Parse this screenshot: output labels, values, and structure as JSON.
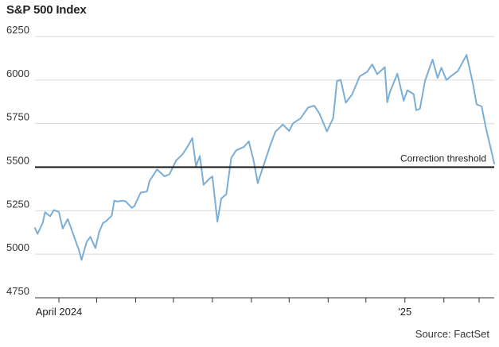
{
  "chart_data": {
    "type": "line",
    "title": "S&P 500 Index",
    "xlabel": "",
    "ylabel": "",
    "ylim": [
      4750,
      6250
    ],
    "xlim": [
      "2024-03-13",
      "2025-03-13"
    ],
    "yticks": [
      4750,
      5000,
      5250,
      5500,
      5750,
      6000,
      6250
    ],
    "ytick_labels": [
      "4750",
      "5000",
      "5250",
      "5500",
      "5750",
      "6000",
      "6250"
    ],
    "xtick_labels": [
      {
        "date": "2024-04-01",
        "label": "April 2024"
      },
      {
        "date": "2025-01-01",
        "label": "'25"
      }
    ],
    "month_ticks": [
      "2024-04-01",
      "2024-05-01",
      "2024-06-01",
      "2024-07-01",
      "2024-08-01",
      "2024-09-01",
      "2024-10-01",
      "2024-11-01",
      "2024-12-01",
      "2025-01-01",
      "2025-02-01",
      "2025-03-01"
    ],
    "grid": true,
    "line_color": "#7aaed6",
    "series": [
      {
        "name": "",
        "x": [
          "2024-03-13",
          "2024-03-15",
          "2024-03-19",
          "2024-03-21",
          "2024-03-25",
          "2024-03-28",
          "2024-04-01",
          "2024-04-04",
          "2024-04-08",
          "2024-04-12",
          "2024-04-15",
          "2024-04-17",
          "2024-04-19",
          "2024-04-23",
          "2024-04-26",
          "2024-04-30",
          "2024-05-03",
          "2024-05-06",
          "2024-05-08",
          "2024-05-13",
          "2024-05-15",
          "2024-05-17",
          "2024-05-22",
          "2024-05-24",
          "2024-05-29",
          "2024-05-31",
          "2024-06-05",
          "2024-06-10",
          "2024-06-12",
          "2024-06-18",
          "2024-06-24",
          "2024-06-28",
          "2024-07-03",
          "2024-07-08",
          "2024-07-12",
          "2024-07-16",
          "2024-07-19",
          "2024-07-22",
          "2024-07-25",
          "2024-07-30",
          "2024-08-01",
          "2024-08-05",
          "2024-08-08",
          "2024-08-12",
          "2024-08-16",
          "2024-08-20",
          "2024-08-26",
          "2024-08-30",
          "2024-09-03",
          "2024-09-06",
          "2024-09-10",
          "2024-09-16",
          "2024-09-20",
          "2024-09-26",
          "2024-10-01",
          "2024-10-04",
          "2024-10-10",
          "2024-10-16",
          "2024-10-21",
          "2024-10-25",
          "2024-10-31",
          "2024-11-05",
          "2024-11-08",
          "2024-11-11",
          "2024-11-15",
          "2024-11-20",
          "2024-11-26",
          "2024-12-02",
          "2024-12-06",
          "2024-12-10",
          "2024-12-16",
          "2024-12-18",
          "2024-12-20",
          "2024-12-26",
          "2024-12-31",
          "2025-01-03",
          "2025-01-08",
          "2025-01-10",
          "2025-01-13",
          "2025-01-17",
          "2025-01-23",
          "2025-01-27",
          "2025-01-30",
          "2025-02-03",
          "2025-02-07",
          "2025-02-12",
          "2025-02-19",
          "2025-02-24",
          "2025-02-27",
          "2025-03-03",
          "2025-03-06",
          "2025-03-10",
          "2025-03-13"
        ],
        "values": [
          5150,
          5117,
          5178,
          5241,
          5218,
          5254,
          5243,
          5147,
          5202,
          5123,
          5061,
          5022,
          4967,
          5070,
          5100,
          5035,
          5128,
          5180,
          5187,
          5221,
          5308,
          5303,
          5307,
          5304,
          5266,
          5277,
          5354,
          5360,
          5421,
          5487,
          5447,
          5460,
          5537,
          5572,
          5615,
          5667,
          5505,
          5564,
          5399,
          5436,
          5446,
          5186,
          5320,
          5344,
          5554,
          5597,
          5616,
          5648,
          5528,
          5408,
          5495,
          5626,
          5702,
          5745,
          5708,
          5751,
          5780,
          5842,
          5853,
          5808,
          5705,
          5782,
          5995,
          6001,
          5870,
          5917,
          6021,
          6047,
          6090,
          6034,
          6074,
          5872,
          5930,
          6037,
          5881,
          5942,
          5919,
          5827,
          5836,
          5997,
          6118,
          6012,
          6071,
          6000,
          6025,
          6051,
          6144,
          5983,
          5861,
          5849,
          5739,
          5614,
          5521
        ]
      }
    ],
    "reference_line": {
      "value": 5500,
      "label": "Correction threshold"
    }
  },
  "source": "Source: FactSet"
}
